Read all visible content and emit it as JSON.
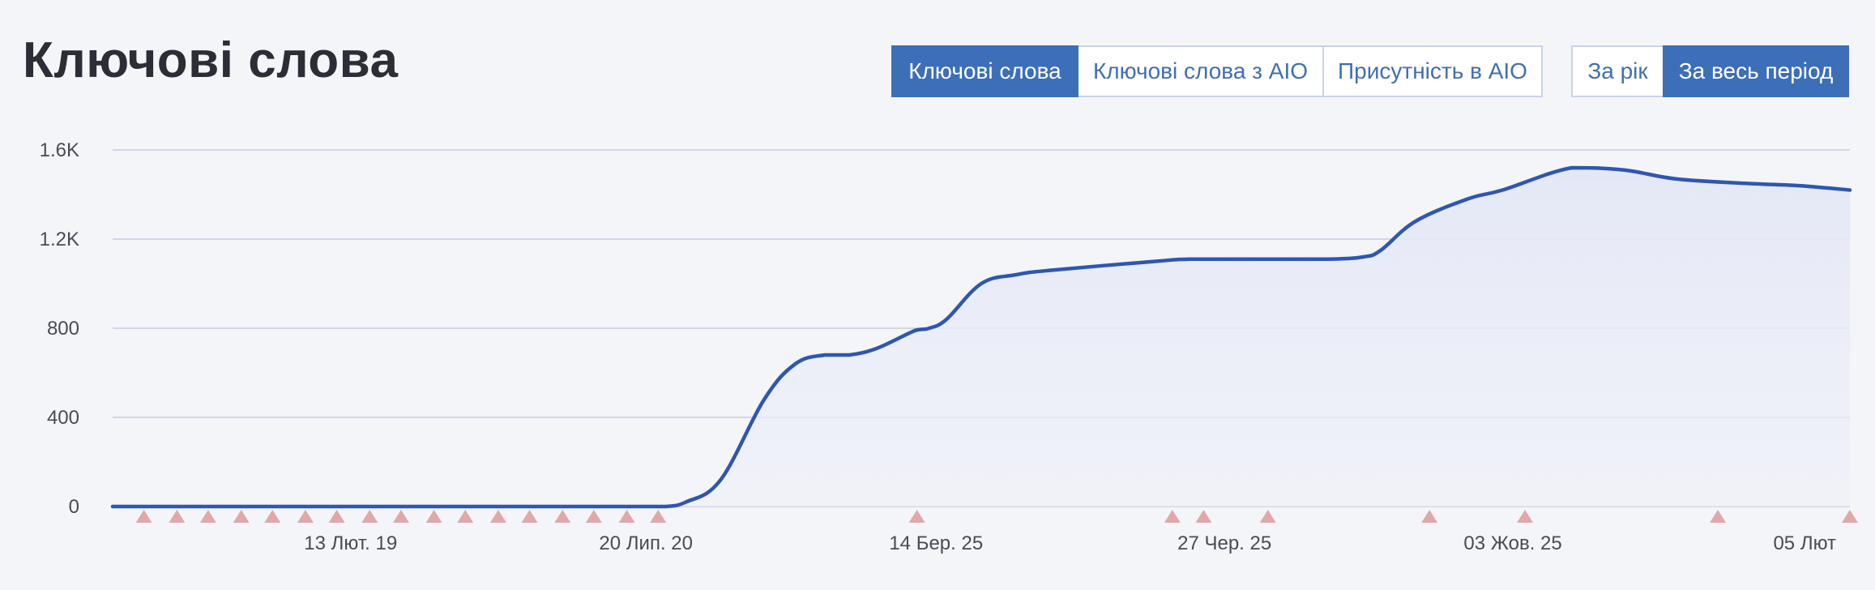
{
  "title": "Ключові слова",
  "metric_tabs": [
    {
      "label": "Ключові слова",
      "active": true
    },
    {
      "label": "Ключові слова з AIO",
      "active": false
    },
    {
      "label": "Присутність в AIO",
      "active": false
    }
  ],
  "period_tabs": [
    {
      "label": "За рік",
      "active": false
    },
    {
      "label": "За весь період",
      "active": true
    }
  ],
  "colors": {
    "accent": "#3d6fb8",
    "line": "#2f56b0",
    "area": "#e8ebf6",
    "grid": "#c5cbe0",
    "marker": "#e0a8ab"
  },
  "chart_data": {
    "type": "area",
    "xlabel": "",
    "ylabel": "",
    "ylim": [
      0,
      1600
    ],
    "y_ticks": [
      0,
      400,
      800,
      1200,
      1600
    ],
    "y_tick_labels": [
      "0",
      "400",
      "800",
      "1.2K",
      "1.6K"
    ],
    "x_tick_labels": [
      "13 Лют. 19",
      "20 Лип. 20",
      "14 Бер. 25",
      "27 Чер. 25",
      "03 Жов. 25",
      "05 Лют"
    ],
    "x_tick_positions": [
      0.137,
      0.307,
      0.474,
      0.64,
      0.806,
      0.974
    ],
    "grid": true,
    "legend": "none",
    "series": [
      {
        "x": [
          0,
          0.1,
          0.2,
          0.3,
          0.318,
          0.33,
          0.35,
          0.375,
          0.393,
          0.41,
          0.424,
          0.44,
          0.462,
          0.47,
          0.48,
          0.5,
          0.52,
          0.54,
          0.6,
          0.62,
          0.66,
          0.7,
          0.73,
          0.72,
          0.75,
          0.78,
          0.8,
          0.84,
          0.87,
          0.9,
          0.94,
          0.97,
          1.0
        ],
        "y": [
          0,
          0,
          0,
          0,
          0,
          20,
          120,
          480,
          640,
          680,
          680,
          710,
          790,
          800,
          840,
          1000,
          1040,
          1060,
          1100,
          1110,
          1110,
          1110,
          1150,
          1120,
          1280,
          1380,
          1420,
          1520,
          1510,
          1470,
          1450,
          1440,
          1420
        ]
      }
    ],
    "event_markers_x": [
      0.018,
      0.037,
      0.055,
      0.074,
      0.092,
      0.111,
      0.129,
      0.148,
      0.166,
      0.185,
      0.203,
      0.222,
      0.24,
      0.259,
      0.277,
      0.296,
      0.314,
      0.463,
      0.61,
      0.628,
      0.665,
      0.758,
      0.813,
      0.924,
      1.0
    ]
  }
}
